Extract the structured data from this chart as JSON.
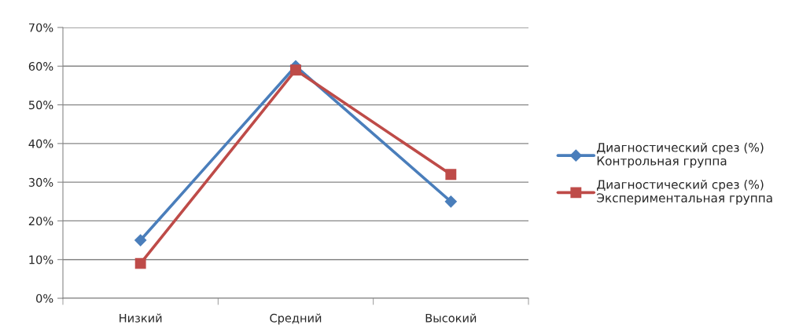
{
  "chart_data": {
    "type": "line",
    "categories": [
      "Низкий",
      "Средний",
      "Высокий"
    ],
    "series": [
      {
        "name": "Диагностический срез (%)\nКонтрольная группа",
        "color": "#4a7ebb",
        "marker": "diamond",
        "values": [
          15,
          60,
          25
        ]
      },
      {
        "name": "Диагностический срез (%)\nЭкспериментальная группа",
        "color": "#be4b48",
        "marker": "square",
        "values": [
          9,
          59,
          32
        ]
      }
    ],
    "ylim": [
      0,
      70
    ],
    "yticks": [
      {
        "value": 0,
        "label": "0%"
      },
      {
        "value": 10,
        "label": "10%"
      },
      {
        "value": 20,
        "label": "20%"
      },
      {
        "value": 30,
        "label": "30%"
      },
      {
        "value": 40,
        "label": "40%"
      },
      {
        "value": 50,
        "label": "50%"
      },
      {
        "value": 60,
        "label": "60%"
      },
      {
        "value": 70,
        "label": "70%"
      }
    ],
    "grid": "y",
    "legend": "right",
    "line_style": "solid"
  }
}
